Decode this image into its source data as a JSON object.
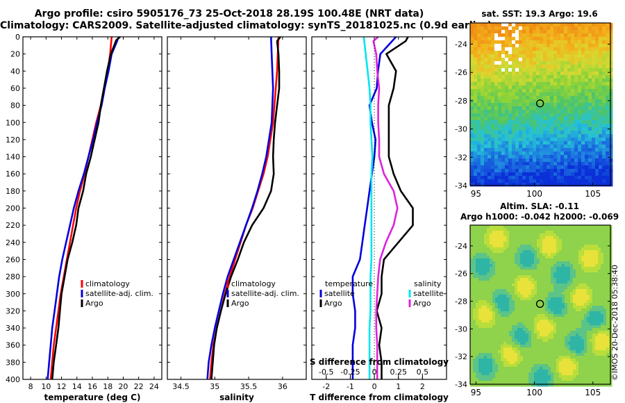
{
  "header": {
    "line1": "Argo profile: csiro 5905176_73 25-Oct-2018 28.19S 100.48E (NRT data)",
    "line2": "Climatology: CARS2009. Satellite-adjusted climatology: synTS_20181025.nc (0.9d earlier)"
  },
  "stamp": "©IMOS 20-Dec-2018 05:38:40",
  "colors": {
    "climatology": "#ff0000",
    "satellite": "#0000dd",
    "argo": "#000000",
    "sat_s": "#00e5ee",
    "argo_s": "#dd22dd"
  },
  "chart_data": [
    {
      "type": "line",
      "name": "temperature",
      "xlabel": "temperature (deg C)",
      "ylabel": "depth",
      "xlim": [
        7,
        25
      ],
      "ylim": [
        400,
        0
      ],
      "xticks": [
        8,
        10,
        12,
        14,
        16,
        18,
        20,
        22,
        24
      ],
      "yticks": [
        0,
        20,
        40,
        60,
        80,
        100,
        120,
        140,
        160,
        180,
        200,
        220,
        240,
        260,
        280,
        300,
        320,
        340,
        360,
        380,
        400
      ],
      "legend": [
        "climatology",
        "satellite-adj. clim.",
        "Argo"
      ],
      "series": [
        {
          "name": "climatology",
          "color": "#ff0000",
          "depth": [
            0,
            20,
            40,
            60,
            80,
            100,
            120,
            140,
            160,
            180,
            200,
            220,
            240,
            260,
            280,
            300,
            320,
            340,
            360,
            380,
            400
          ],
          "values": [
            18.5,
            18.3,
            18.0,
            17.5,
            17.1,
            16.5,
            16.0,
            15.5,
            15.0,
            14.4,
            13.9,
            13.5,
            13.1,
            12.7,
            12.3,
            11.9,
            11.6,
            11.3,
            11.0,
            10.8,
            10.6
          ]
        },
        {
          "name": "satellite-adj. clim.",
          "color": "#0000dd",
          "depth": [
            0,
            5,
            20,
            40,
            60,
            80,
            100,
            120,
            140,
            160,
            180,
            200,
            220,
            240,
            260,
            280,
            300,
            320,
            340,
            360,
            380,
            400
          ],
          "values": [
            19.4,
            19.2,
            18.5,
            18.1,
            17.6,
            17.2,
            16.6,
            16.1,
            15.5,
            14.9,
            14.2,
            13.6,
            13.1,
            12.6,
            12.1,
            11.7,
            11.4,
            11.1,
            10.8,
            10.6,
            10.4,
            10.2
          ]
        },
        {
          "name": "Argo",
          "color": "#000000",
          "depth": [
            0,
            4,
            20,
            40,
            60,
            80,
            100,
            120,
            140,
            160,
            180,
            200,
            220,
            240,
            260,
            280,
            300,
            320,
            340,
            360,
            380,
            400
          ],
          "values": [
            19.6,
            19.1,
            18.4,
            17.9,
            17.5,
            17.1,
            16.8,
            16.3,
            15.8,
            15.2,
            14.8,
            14.2,
            13.9,
            13.4,
            12.8,
            12.4,
            12.0,
            11.8,
            11.6,
            11.3,
            11.0,
            10.8
          ]
        }
      ]
    },
    {
      "type": "line",
      "name": "salinity",
      "xlabel": "salinity",
      "ylabel": "depth",
      "xlim": [
        34.3,
        36.35
      ],
      "ylim": [
        400,
        0
      ],
      "xticks": [
        34.5,
        35,
        35.5,
        36
      ],
      "xticklabels": [
        "34.5",
        "35",
        "35.5",
        "36"
      ],
      "legend": [
        "climatology",
        "satellite-adj. clim.",
        "Argo"
      ],
      "series": [
        {
          "name": "climatology",
          "color": "#ff0000",
          "depth": [
            0,
            20,
            40,
            60,
            80,
            100,
            120,
            140,
            160,
            180,
            200,
            220,
            240,
            260,
            280,
            300,
            320,
            340,
            360,
            380,
            400
          ],
          "values": [
            35.94,
            35.93,
            35.92,
            35.9,
            35.88,
            35.86,
            35.82,
            35.78,
            35.72,
            35.64,
            35.56,
            35.46,
            35.38,
            35.3,
            35.22,
            35.15,
            35.09,
            35.03,
            34.98,
            34.95,
            34.93
          ]
        },
        {
          "name": "satellite-adj. clim.",
          "color": "#0000dd",
          "depth": [
            0,
            20,
            40,
            60,
            80,
            100,
            120,
            140,
            160,
            180,
            200,
            220,
            240,
            260,
            280,
            300,
            320,
            340,
            360,
            380,
            400
          ],
          "values": [
            35.83,
            35.84,
            35.85,
            35.86,
            35.85,
            35.84,
            35.8,
            35.76,
            35.7,
            35.63,
            35.55,
            35.46,
            35.37,
            35.28,
            35.19,
            35.12,
            35.06,
            35.0,
            34.95,
            34.91,
            34.89
          ]
        },
        {
          "name": "Argo",
          "color": "#000000",
          "depth": [
            0,
            5,
            20,
            40,
            60,
            80,
            100,
            120,
            140,
            160,
            180,
            200,
            220,
            240,
            260,
            280,
            300,
            320,
            340,
            360,
            380,
            400
          ],
          "values": [
            35.97,
            35.92,
            35.94,
            35.95,
            35.95,
            35.92,
            35.89,
            35.87,
            35.86,
            35.87,
            35.83,
            35.72,
            35.55,
            35.43,
            35.34,
            35.24,
            35.16,
            35.09,
            35.03,
            34.99,
            34.97,
            34.95
          ]
        }
      ]
    },
    {
      "type": "line",
      "name": "difference",
      "xlabel": "T difference from climatology",
      "top_axis_label": "S difference from climatology",
      "xlim": [
        -2.6,
        3.0
      ],
      "ylim": [
        400,
        0
      ],
      "xticks": [
        -2,
        -1,
        0,
        1,
        2
      ],
      "xticklabels": [
        "-2",
        "-1",
        "0",
        "1",
        "2"
      ],
      "s_ticks": [
        -0.5,
        -0.25,
        0,
        0.25,
        0.5
      ],
      "s_ticklabels": [
        "-0.5",
        "-0.25",
        "0",
        "0.25",
        "0.5"
      ],
      "s_scale": 4,
      "legend_groups": [
        {
          "title": "temperature",
          "items": [
            "satellite",
            "Argo"
          ]
        },
        {
          "title": "salinity",
          "items": [
            "satellite",
            "Argo"
          ]
        }
      ],
      "series": [
        {
          "name": "temperature satellite",
          "quantity": "T",
          "color": "#0000dd",
          "depth": [
            0,
            20,
            40,
            60,
            80,
            100,
            120,
            140,
            160,
            180,
            200,
            220,
            240,
            260,
            280,
            300,
            320,
            340,
            360,
            380,
            400
          ],
          "values": [
            0.9,
            0.25,
            0.15,
            0.1,
            -0.2,
            -0.1,
            0.05,
            0.0,
            -0.1,
            -0.2,
            -0.3,
            -0.4,
            -0.5,
            -0.6,
            -0.9,
            -0.9,
            -0.8,
            -0.8,
            -0.9,
            -0.9,
            -0.9
          ]
        },
        {
          "name": "temperature Argo",
          "quantity": "T",
          "color": "#000000",
          "depth": [
            0,
            5,
            20,
            40,
            60,
            80,
            100,
            120,
            140,
            160,
            180,
            200,
            220,
            240,
            260,
            280,
            300,
            320,
            340,
            360,
            380,
            400
          ],
          "values": [
            1.4,
            1.3,
            0.5,
            0.9,
            0.8,
            0.6,
            0.6,
            0.6,
            0.6,
            0.8,
            1.1,
            1.6,
            1.6,
            1.0,
            0.4,
            0.3,
            0.3,
            0.1,
            0.3,
            0.2,
            0.3,
            0.3
          ]
        },
        {
          "name": "salinity satellite",
          "quantity": "S",
          "color": "#00e5ee",
          "depth": [
            0,
            20,
            40,
            60,
            80,
            100,
            120,
            140,
            160,
            180,
            200,
            220,
            240,
            260,
            280,
            300,
            320,
            340,
            360,
            380,
            400
          ],
          "values": [
            -0.11,
            -0.09,
            -0.07,
            -0.05,
            -0.04,
            -0.04,
            -0.03,
            -0.02,
            -0.03,
            -0.03,
            -0.03,
            -0.03,
            -0.03,
            -0.03,
            -0.04,
            -0.04,
            -0.04,
            -0.05,
            -0.05,
            -0.05,
            -0.05
          ]
        },
        {
          "name": "salinity Argo",
          "quantity": "S",
          "color": "#dd22dd",
          "depth": [
            0,
            5,
            20,
            40,
            60,
            80,
            100,
            120,
            140,
            160,
            180,
            200,
            220,
            240,
            260,
            280,
            300,
            320,
            340,
            360,
            380,
            400
          ],
          "values": [
            0.04,
            -0.01,
            0.02,
            0.03,
            0.05,
            0.04,
            0.04,
            0.05,
            0.05,
            0.1,
            0.2,
            0.24,
            0.2,
            0.12,
            0.06,
            0.04,
            0.03,
            0.02,
            0.02,
            0.03,
            0.03,
            0.03
          ]
        }
      ]
    },
    {
      "type": "heatmap",
      "name": "sst_map",
      "title": "sat. SST: 19.3 Argo: 19.6",
      "xlim": [
        94.5,
        106.5
      ],
      "ylim": [
        -34,
        -22.5
      ],
      "xticks": [
        95,
        100,
        105
      ],
      "yticks": [
        -24,
        -26,
        -28,
        -30,
        -32,
        -34
      ],
      "marker": {
        "lon": 100.48,
        "lat": -28.19
      },
      "colormap": [
        "#0b2fd8",
        "#1d78e0",
        "#25c2d8",
        "#4cc46a",
        "#8ed438",
        "#d9d932",
        "#f3b21b",
        "#ef8a14"
      ],
      "value_range": [
        16.5,
        22.5
      ]
    },
    {
      "type": "heatmap",
      "name": "sla_map",
      "title_line1": "Altim. SLA: -0.11",
      "title_line2": "Argo h1000: -0.042 h2000: -0.069",
      "xlim": [
        94.5,
        106.5
      ],
      "ylim": [
        -34,
        -22.5
      ],
      "xticks": [
        95,
        100,
        105
      ],
      "yticks": [
        -24,
        -26,
        -28,
        -30,
        -32,
        -34
      ],
      "marker": {
        "lon": 100.48,
        "lat": -28.19
      }
    }
  ]
}
